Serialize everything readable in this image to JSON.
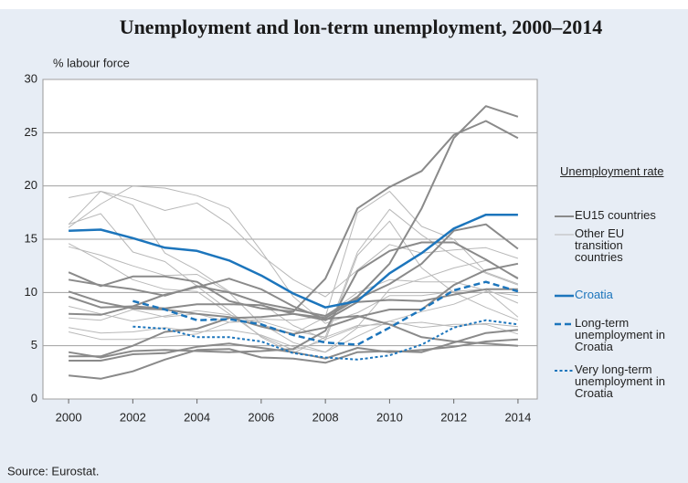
{
  "chart_data": {
    "type": "line",
    "title": "Unemployment and lon-term unemployment, 2000–2014",
    "y_label": "% labour force",
    "source": "Source: Eurostat.",
    "legend_title": "Unemployment rate",
    "x": [
      2000,
      2001,
      2002,
      2003,
      2004,
      2005,
      2006,
      2007,
      2008,
      2009,
      2010,
      2011,
      2012,
      2013,
      2014
    ],
    "xlim": [
      1999.2,
      2014.6
    ],
    "xticks": [
      2000,
      2002,
      2004,
      2006,
      2008,
      2010,
      2012,
      2014
    ],
    "ylim": [
      0,
      30
    ],
    "yticks": [
      0,
      5,
      10,
      15,
      20,
      25,
      30
    ],
    "grid": true,
    "series": [
      {
        "name": "Other EU transition countries",
        "color": "#b8b8b8",
        "width": 1,
        "dash": "solid",
        "lines": [
          [
            16.1,
            18.3,
            20.0,
            19.8,
            19.1,
            17.9,
            13.9,
            9.6,
            7.1,
            8.1,
            9.7,
            9.7,
            10.1,
            10.3,
            9.0
          ],
          [
            18.9,
            19.5,
            18.8,
            17.7,
            18.4,
            16.4,
            13.5,
            11.2,
            9.6,
            12.1,
            14.5,
            13.7,
            14.0,
            14.2,
            13.2
          ],
          [
            16.4,
            19.5,
            18.2,
            13.7,
            12.1,
            10.1,
            9.0,
            6.9,
            5.6,
            6.8,
            10.3,
            11.3,
            12.3,
            13.0,
            11.4
          ],
          [
            16.4,
            17.4,
            13.8,
            12.9,
            10.6,
            8.3,
            5.8,
            4.3,
            5.8,
            13.8,
            17.8,
            15.4,
            13.4,
            11.8,
            10.7
          ],
          [
            14.3,
            13.5,
            12.5,
            11.6,
            11.7,
            10.0,
            7.0,
            6.1,
            7.7,
            17.5,
            19.5,
            16.2,
            15.0,
            11.9,
            10.8
          ],
          [
            14.6,
            13.0,
            11.2,
            10.3,
            10.1,
            8.0,
            5.9,
            4.6,
            5.5,
            13.5,
            16.7,
            12.3,
            10.0,
            8.6,
            7.4
          ],
          [
            6.3,
            5.6,
            5.6,
            5.8,
            6.1,
            7.2,
            7.5,
            7.4,
            7.8,
            10.0,
            11.2,
            11.0,
            11.0,
            10.2,
            7.7
          ],
          [
            8.7,
            8.0,
            7.3,
            7.8,
            8.3,
            7.9,
            7.1,
            5.3,
            4.4,
            6.7,
            7.3,
            6.7,
            7.0,
            7.0,
            6.1
          ],
          [
            6.7,
            6.2,
            6.3,
            6.7,
            6.3,
            6.5,
            6.0,
            4.9,
            4.4,
            5.9,
            7.3,
            8.2,
            8.9,
            10.1,
            9.7
          ],
          [
            7.6,
            7.4,
            8.4,
            7.7,
            8.0,
            7.2,
            7.3,
            6.4,
            5.8,
            6.9,
            7.0,
            7.2,
            6.8,
            7.1,
            6.8
          ]
        ]
      },
      {
        "name": "EU15 countries",
        "color": "#8a8a8a",
        "width": 2,
        "dash": "solid",
        "lines": [
          [
            11.9,
            10.6,
            11.5,
            11.5,
            11.0,
            9.2,
            8.5,
            8.2,
            11.3,
            17.9,
            19.9,
            21.4,
            24.8,
            26.1,
            24.5
          ],
          [
            11.2,
            10.7,
            10.3,
            9.7,
            10.6,
            10.0,
            9.0,
            8.4,
            7.8,
            9.6,
            12.7,
            17.9,
            24.5,
            27.5,
            26.5
          ],
          [
            4.0,
            4.0,
            5.0,
            6.3,
            6.6,
            7.6,
            7.7,
            8.0,
            7.6,
            9.4,
            10.8,
            12.7,
            15.8,
            16.4,
            14.1
          ],
          [
            4.4,
            3.9,
            4.5,
            4.6,
            4.5,
            4.4,
            4.5,
            4.7,
            6.4,
            12.0,
            13.9,
            14.7,
            14.7,
            13.1,
            11.3
          ],
          [
            2.2,
            1.9,
            2.6,
            3.7,
            4.6,
            4.7,
            3.9,
            3.8,
            3.4,
            4.4,
            4.5,
            4.4,
            5.3,
            6.2,
            6.5
          ],
          [
            3.6,
            3.6,
            4.2,
            4.3,
            4.9,
            5.2,
            4.8,
            4.4,
            3.8,
            4.8,
            4.4,
            4.6,
            4.9,
            5.4,
            5.6
          ],
          [
            8.0,
            7.9,
            8.7,
            9.8,
            10.5,
            11.3,
            10.3,
            8.7,
            7.5,
            7.8,
            7.0,
            5.8,
            5.4,
            5.2,
            5.0
          ],
          [
            9.6,
            8.6,
            8.7,
            8.5,
            8.9,
            8.9,
            8.8,
            8.0,
            7.4,
            9.1,
            9.3,
            9.2,
            9.8,
            10.3,
            10.3
          ],
          [
            10.1,
            9.1,
            8.5,
            8.4,
            8.0,
            7.7,
            6.8,
            6.1,
            6.7,
            7.7,
            8.4,
            8.4,
            10.7,
            12.1,
            12.7
          ]
        ]
      },
      {
        "name": "Croatia",
        "color": "#1c75bc",
        "width": 2.5,
        "dash": "solid",
        "values": [
          15.8,
          15.9,
          15.1,
          14.2,
          13.9,
          13.0,
          11.6,
          9.9,
          8.6,
          9.2,
          11.8,
          13.7,
          16.0,
          17.3,
          17.3
        ]
      },
      {
        "name": "Long-term unemployment in Croatia",
        "color": "#1c75bc",
        "width": 2.5,
        "dash": "dashed",
        "values": [
          null,
          null,
          9.2,
          8.4,
          7.4,
          7.5,
          7.0,
          6.0,
          5.3,
          5.1,
          6.7,
          8.4,
          10.2,
          11.0,
          10.1
        ]
      },
      {
        "name": "Very long-term unemployment in Croatia",
        "color": "#1c75bc",
        "width": 2,
        "dash": "dotted",
        "values": [
          null,
          null,
          6.8,
          6.6,
          5.8,
          5.8,
          5.4,
          4.3,
          3.9,
          3.7,
          4.1,
          5.1,
          6.7,
          7.4,
          7.0
        ]
      }
    ]
  }
}
